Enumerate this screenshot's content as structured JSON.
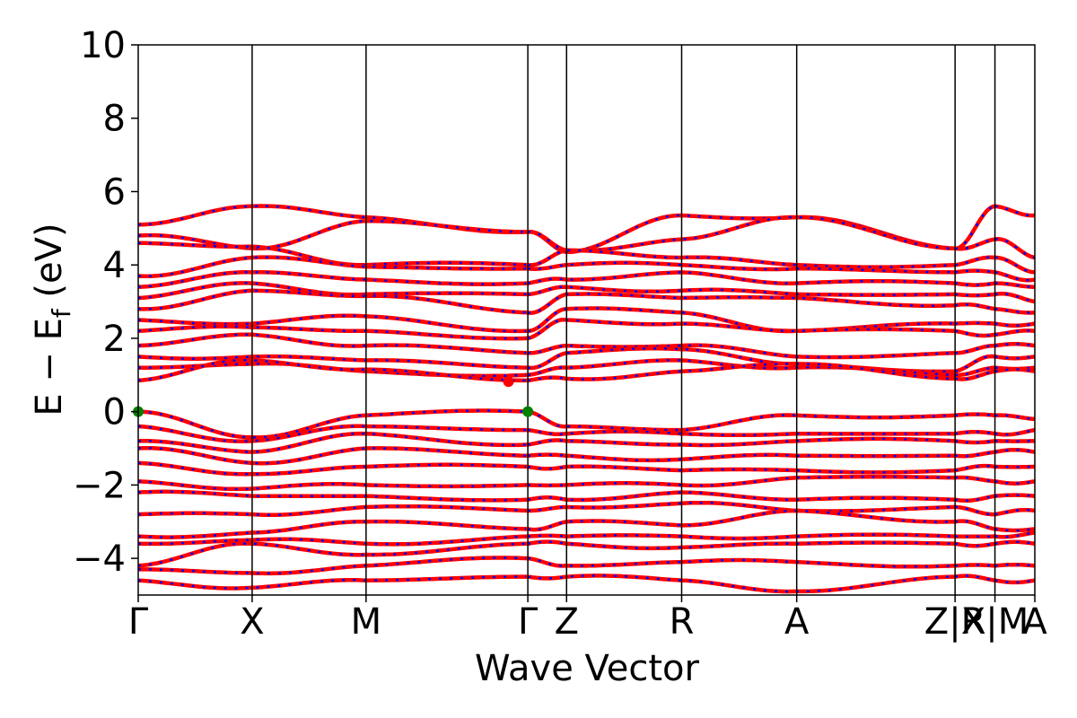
{
  "chart_data": {
    "type": "line",
    "xlabel": "Wave Vector",
    "ylabel_main": "E − E",
    "ylabel_sub": "f",
    "ylabel_unit": " (eV)",
    "ylim": [
      -5,
      10
    ],
    "yticks": [
      {
        "value": 10,
        "label": "10"
      },
      {
        "value": 8,
        "label": "8"
      },
      {
        "value": 6,
        "label": "6"
      },
      {
        "value": 4,
        "label": "4"
      },
      {
        "value": 2,
        "label": "2"
      },
      {
        "value": 0,
        "label": "0"
      },
      {
        "value": -2,
        "label": "−2"
      },
      {
        "value": -4,
        "label": "−4"
      }
    ],
    "kpoint_positions": [
      0,
      1.0,
      2.0,
      3.42,
      3.76,
      4.77,
      5.78,
      7.17,
      7.52,
      7.87
    ],
    "xticks": [
      {
        "position": 0,
        "label": "Γ"
      },
      {
        "position": 1.0,
        "label": "X"
      },
      {
        "position": 2.0,
        "label": "M"
      },
      {
        "position": 3.42,
        "label": "Γ"
      },
      {
        "position": 3.76,
        "label": "Z"
      },
      {
        "position": 4.77,
        "label": "R"
      },
      {
        "position": 5.78,
        "label": "A"
      },
      {
        "position": 7.17,
        "label": "Z|R"
      },
      {
        "position": 7.52,
        "label": "X|M"
      },
      {
        "position": 7.87,
        "label": "A"
      }
    ],
    "segments": [
      {
        "from": 0,
        "to": 3.42
      },
      {
        "from": 3.42,
        "to": 7.17
      },
      {
        "from": 7.17,
        "to": 7.52
      },
      {
        "from": 7.52,
        "to": 7.87
      }
    ],
    "bands": [
      [
        5.1,
        5.6,
        5.3,
        4.9,
        4.35,
        5.35,
        5.3,
        4.45,
        5.6,
        5.35,
        5.3
      ],
      [
        4.8,
        4.45,
        5.2,
        4.9,
        4.4,
        4.7,
        5.3,
        4.45,
        4.7,
        4.2,
        4.0
      ],
      [
        4.6,
        4.5,
        4.0,
        4.0,
        4.4,
        4.2,
        4.0,
        4.0,
        4.2,
        3.8,
        4.0
      ],
      [
        3.7,
        4.2,
        3.95,
        3.9,
        4.0,
        4.0,
        3.9,
        3.8,
        3.8,
        3.6,
        3.6
      ],
      [
        3.4,
        3.8,
        3.6,
        3.5,
        3.6,
        3.8,
        3.5,
        3.5,
        3.5,
        3.4,
        3.4
      ],
      [
        3.1,
        3.5,
        3.2,
        3.2,
        3.4,
        3.3,
        3.2,
        3.2,
        3.2,
        3.0,
        3.0
      ],
      [
        2.8,
        3.3,
        3.15,
        2.7,
        3.2,
        3.1,
        3.1,
        2.9,
        2.8,
        2.7,
        2.6
      ],
      [
        2.5,
        2.4,
        2.6,
        2.2,
        2.8,
        2.7,
        2.2,
        2.4,
        2.4,
        2.4,
        2.2
      ],
      [
        2.2,
        2.3,
        2.2,
        2.0,
        2.5,
        2.4,
        2.2,
        2.2,
        2.1,
        2.2,
        2.2
      ],
      [
        1.8,
        2.1,
        1.8,
        1.6,
        1.8,
        1.8,
        1.5,
        1.6,
        1.8,
        1.8,
        1.6
      ],
      [
        1.5,
        1.5,
        1.4,
        1.2,
        1.6,
        1.7,
        1.3,
        1.1,
        1.5,
        1.5,
        1.3
      ],
      [
        1.2,
        1.3,
        1.1,
        1.0,
        1.2,
        1.4,
        1.2,
        1.0,
        1.2,
        1.2,
        1.2
      ],
      [
        0.85,
        1.4,
        1.15,
        0.85,
        0.9,
        1.1,
        1.3,
        0.9,
        1.1,
        1.1,
        1.1
      ],
      [
        0.0,
        -0.7,
        -0.1,
        0.0,
        -0.4,
        -0.5,
        -0.1,
        -0.1,
        -0.1,
        -0.2,
        -0.2
      ],
      [
        -0.4,
        -0.8,
        -0.4,
        -0.5,
        -0.6,
        -0.6,
        -0.6,
        -0.6,
        -0.6,
        -0.5,
        -0.5
      ],
      [
        -0.8,
        -1.1,
        -0.6,
        -0.9,
        -0.8,
        -0.9,
        -0.8,
        -0.8,
        -0.8,
        -0.8,
        -0.7
      ],
      [
        -1.0,
        -1.4,
        -1.0,
        -1.2,
        -1.2,
        -1.3,
        -1.2,
        -1.2,
        -1.1,
        -1.1,
        -1.2
      ],
      [
        -1.4,
        -1.7,
        -1.5,
        -1.5,
        -1.5,
        -1.6,
        -1.6,
        -1.6,
        -1.5,
        -1.5,
        -1.6
      ],
      [
        -1.9,
        -2.1,
        -2.0,
        -2.0,
        -2.0,
        -2.0,
        -1.8,
        -1.8,
        -1.9,
        -1.9,
        -2.0
      ],
      [
        -2.2,
        -2.3,
        -2.3,
        -2.4,
        -2.4,
        -2.2,
        -2.4,
        -2.4,
        -2.3,
        -2.3,
        -2.4
      ],
      [
        -2.8,
        -2.8,
        -2.6,
        -2.7,
        -2.6,
        -2.5,
        -2.7,
        -2.6,
        -2.8,
        -2.7,
        -2.7
      ],
      [
        -3.4,
        -3.3,
        -3.0,
        -3.2,
        -3.0,
        -3.1,
        -2.7,
        -3.0,
        -3.2,
        -3.2,
        -2.7
      ],
      [
        -3.6,
        -3.5,
        -3.6,
        -3.4,
        -3.4,
        -3.4,
        -3.4,
        -3.4,
        -3.4,
        -3.3,
        -3.2
      ],
      [
        -4.2,
        -3.6,
        -3.9,
        -3.6,
        -3.6,
        -3.7,
        -3.6,
        -3.6,
        -3.6,
        -3.6,
        -3.6
      ],
      [
        -4.3,
        -4.4,
        -4.2,
        -4.0,
        -4.2,
        -4.1,
        -4.1,
        -4.2,
        -4.2,
        -4.2,
        -3.9
      ],
      [
        -4.6,
        -4.8,
        -4.6,
        -4.5,
        -4.5,
        -4.6,
        -4.9,
        -4.5,
        -4.6,
        -4.6,
        -4.6
      ]
    ],
    "colors": {
      "band_primary": "#ff0000",
      "band_dash": "#0000ff",
      "extremum_marker": "#008000",
      "special_point": "#ff0000",
      "frame": "#000000"
    },
    "markers": [
      {
        "x": 0,
        "y": 0.0,
        "color": "#008000",
        "label": "VBM"
      },
      {
        "x": 3.42,
        "y": 0.0,
        "color": "#008000",
        "label": "VBM"
      },
      {
        "x": 3.25,
        "y": 0.82,
        "color": "#ff0000",
        "label": "CBM"
      }
    ]
  }
}
